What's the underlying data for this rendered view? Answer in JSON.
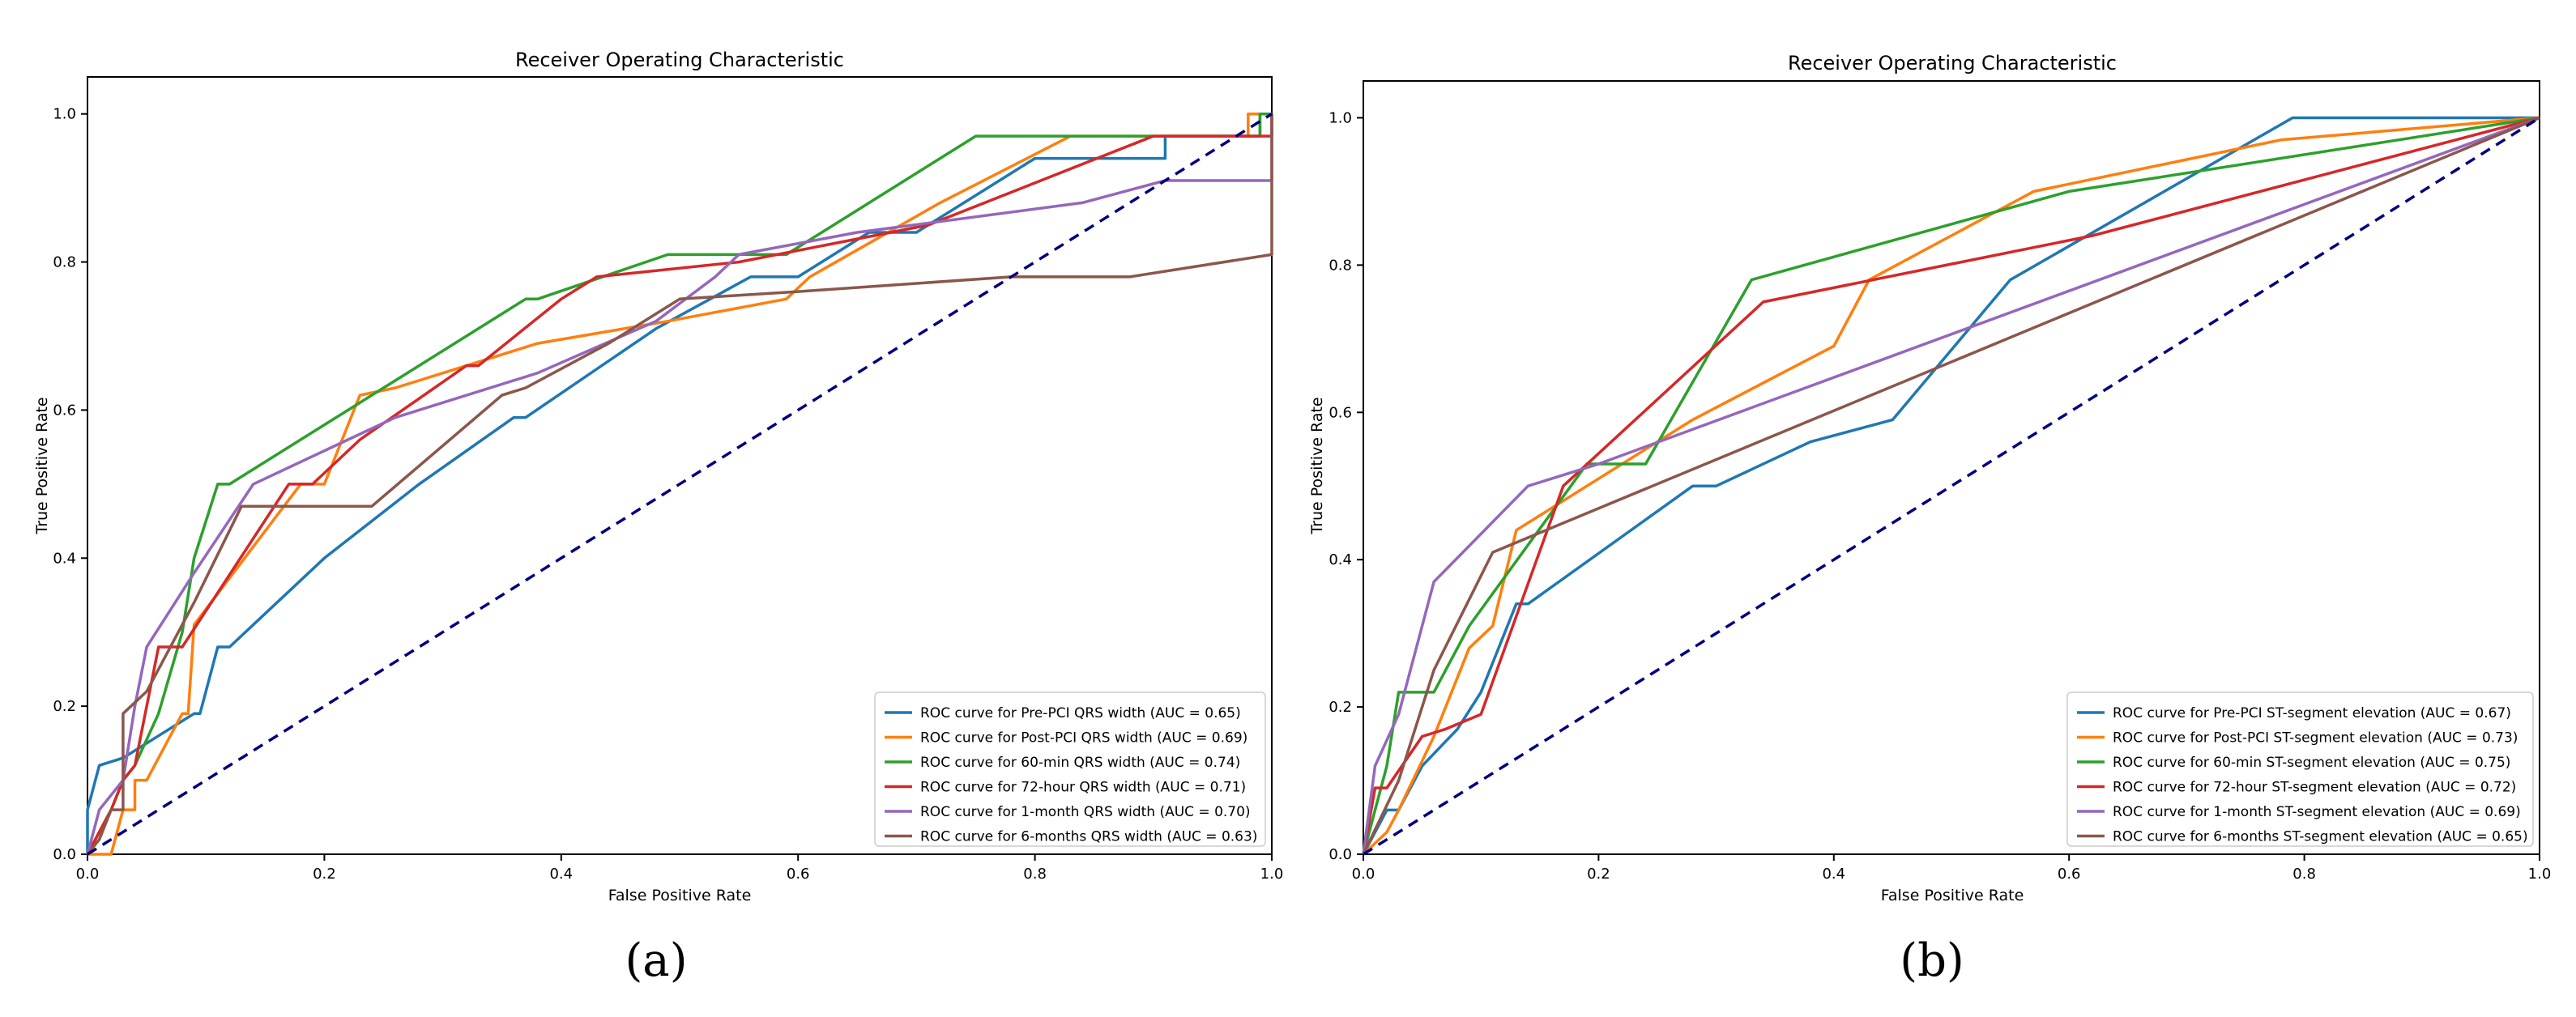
{
  "colors": {
    "pre_pci": "#1f77b4",
    "post_pci": "#ff7f0e",
    "min60": "#2ca02c",
    "hour72": "#d62728",
    "month1": "#9467bd",
    "months6": "#8c564b",
    "diagonal": "#000080"
  },
  "chart_data": [
    {
      "type": "line",
      "panel_label": "(a)",
      "title": "Receiver Operating Characteristic",
      "xlabel": "False Positive Rate",
      "ylabel": "True Positive Rate",
      "xlim": [
        0.0,
        1.0
      ],
      "ylim": [
        0.0,
        1.05
      ],
      "xticks": [
        "0.0",
        "0.2",
        "0.4",
        "0.6",
        "0.8",
        "1.0"
      ],
      "yticks": [
        "0.0",
        "0.2",
        "0.4",
        "0.6",
        "0.8",
        "1.0"
      ],
      "legend_position": "lower-right",
      "diagonal": [
        [
          0,
          0
        ],
        [
          1,
          1
        ]
      ],
      "series": [
        {
          "name": "ROC curve for Pre-PCI QRS width (AUC = 0.65)",
          "color_key": "pre_pci",
          "points": [
            [
              0,
              0
            ],
            [
              0,
              0.06
            ],
            [
              0.01,
              0.12
            ],
            [
              0.03,
              0.13
            ],
            [
              0.06,
              0.16
            ],
            [
              0.09,
              0.19
            ],
            [
              0.095,
              0.19
            ],
            [
              0.11,
              0.28
            ],
            [
              0.12,
              0.28
            ],
            [
              0.2,
              0.4
            ],
            [
              0.28,
              0.5
            ],
            [
              0.36,
              0.59
            ],
            [
              0.37,
              0.59
            ],
            [
              0.48,
              0.71
            ],
            [
              0.56,
              0.78
            ],
            [
              0.6,
              0.78
            ],
            [
              0.66,
              0.84
            ],
            [
              0.7,
              0.84
            ],
            [
              0.8,
              0.94
            ],
            [
              0.91,
              0.94
            ],
            [
              0.91,
              0.97
            ],
            [
              0.99,
              0.97
            ],
            [
              0.99,
              1.0
            ],
            [
              1,
              1
            ]
          ]
        },
        {
          "name": "ROC curve for Post-PCI QRS width (AUC = 0.69)",
          "color_key": "post_pci",
          "points": [
            [
              0,
              0
            ],
            [
              0.02,
              0
            ],
            [
              0.03,
              0.06
            ],
            [
              0.04,
              0.06
            ],
            [
              0.04,
              0.1
            ],
            [
              0.05,
              0.1
            ],
            [
              0.07,
              0.16
            ],
            [
              0.08,
              0.19
            ],
            [
              0.085,
              0.19
            ],
            [
              0.09,
              0.31
            ],
            [
              0.18,
              0.5
            ],
            [
              0.2,
              0.5
            ],
            [
              0.23,
              0.62
            ],
            [
              0.26,
              0.63
            ],
            [
              0.38,
              0.69
            ],
            [
              0.49,
              0.72
            ],
            [
              0.59,
              0.75
            ],
            [
              0.61,
              0.78
            ],
            [
              0.72,
              0.88
            ],
            [
              0.83,
              0.97
            ],
            [
              0.98,
              0.97
            ],
            [
              0.98,
              1.0
            ],
            [
              1,
              1
            ]
          ]
        },
        {
          "name": "ROC curve for 60-min QRS width (AUC = 0.74)",
          "color_key": "min60",
          "points": [
            [
              0,
              0
            ],
            [
              0.02,
              0.06
            ],
            [
              0.03,
              0.1
            ],
            [
              0.04,
              0.12
            ],
            [
              0.06,
              0.19
            ],
            [
              0.08,
              0.3
            ],
            [
              0.09,
              0.4
            ],
            [
              0.11,
              0.5
            ],
            [
              0.12,
              0.5
            ],
            [
              0.37,
              0.75
            ],
            [
              0.38,
              0.75
            ],
            [
              0.49,
              0.81
            ],
            [
              0.59,
              0.81
            ],
            [
              0.65,
              0.87
            ],
            [
              0.75,
              0.97
            ],
            [
              0.91,
              0.97
            ],
            [
              0.99,
              0.97
            ],
            [
              0.99,
              1.0
            ],
            [
              1,
              1
            ]
          ]
        },
        {
          "name": "ROC curve for 72-hour QRS width (AUC = 0.71)",
          "color_key": "hour72",
          "points": [
            [
              0,
              0
            ],
            [
              0.02,
              0.06
            ],
            [
              0.03,
              0.1
            ],
            [
              0.04,
              0.12
            ],
            [
              0.05,
              0.2
            ],
            [
              0.06,
              0.28
            ],
            [
              0.08,
              0.28
            ],
            [
              0.17,
              0.5
            ],
            [
              0.19,
              0.5
            ],
            [
              0.23,
              0.56
            ],
            [
              0.32,
              0.66
            ],
            [
              0.33,
              0.66
            ],
            [
              0.4,
              0.75
            ],
            [
              0.43,
              0.78
            ],
            [
              0.55,
              0.8
            ],
            [
              0.71,
              0.85
            ],
            [
              0.9,
              0.97
            ],
            [
              1,
              0.97
            ],
            [
              1,
              1
            ]
          ]
        },
        {
          "name": "ROC curve for 1-month QRS width (AUC = 0.70)",
          "color_key": "month1",
          "points": [
            [
              0,
              0
            ],
            [
              0.01,
              0.06
            ],
            [
              0.03,
              0.1
            ],
            [
              0.04,
              0.2
            ],
            [
              0.05,
              0.28
            ],
            [
              0.09,
              0.38
            ],
            [
              0.14,
              0.5
            ],
            [
              0.22,
              0.56
            ],
            [
              0.26,
              0.59
            ],
            [
              0.38,
              0.65
            ],
            [
              0.48,
              0.72
            ],
            [
              0.53,
              0.78
            ],
            [
              0.55,
              0.81
            ],
            [
              0.65,
              0.84
            ],
            [
              0.84,
              0.88
            ],
            [
              0.91,
              0.91
            ],
            [
              1,
              0.91
            ],
            [
              1,
              1
            ]
          ]
        },
        {
          "name": "ROC curve for 6-months QRS width (AUC = 0.63)",
          "color_key": "months6",
          "points": [
            [
              0,
              0
            ],
            [
              0.01,
              0.02
            ],
            [
              0.02,
              0.06
            ],
            [
              0.03,
              0.06
            ],
            [
              0.03,
              0.19
            ],
            [
              0.05,
              0.22
            ],
            [
              0.09,
              0.34
            ],
            [
              0.13,
              0.47
            ],
            [
              0.24,
              0.47
            ],
            [
              0.35,
              0.62
            ],
            [
              0.37,
              0.63
            ],
            [
              0.44,
              0.69
            ],
            [
              0.5,
              0.75
            ],
            [
              0.6,
              0.76
            ],
            [
              0.78,
              0.78
            ],
            [
              0.88,
              0.78
            ],
            [
              1,
              0.81
            ],
            [
              1,
              1
            ]
          ]
        }
      ]
    },
    {
      "type": "line",
      "panel_label": "(b)",
      "title": "Receiver Operating Characteristic",
      "xlabel": "False Positive Rate",
      "ylabel": "True Positive Rate",
      "xlim": [
        0.0,
        1.0
      ],
      "ylim": [
        0.0,
        1.05
      ],
      "xticks": [
        "0.0",
        "0.2",
        "0.4",
        "0.6",
        "0.8",
        "1.0"
      ],
      "yticks": [
        "0.0",
        "0.2",
        "0.4",
        "0.6",
        "0.8",
        "1.0"
      ],
      "legend_position": "lower-right",
      "diagonal": [
        [
          0,
          0
        ],
        [
          1,
          1
        ]
      ],
      "series": [
        {
          "name": "ROC curve for Pre-PCI ST-segment elevation (AUC = 0.67)",
          "color_key": "pre_pci",
          "points": [
            [
              0,
              0
            ],
            [
              0.02,
              0.06
            ],
            [
              0.03,
              0.06
            ],
            [
              0.05,
              0.12
            ],
            [
              0.08,
              0.17
            ],
            [
              0.1,
              0.22
            ],
            [
              0.13,
              0.34
            ],
            [
              0.14,
              0.34
            ],
            [
              0.28,
              0.5
            ],
            [
              0.3,
              0.5
            ],
            [
              0.38,
              0.56
            ],
            [
              0.45,
              0.59
            ],
            [
              0.55,
              0.78
            ],
            [
              0.79,
              1.0
            ],
            [
              1,
              1
            ]
          ]
        },
        {
          "name": "ROC curve for Post-PCI ST-segment elevation (AUC = 0.73)",
          "color_key": "post_pci",
          "points": [
            [
              0,
              0
            ],
            [
              0.02,
              0.03
            ],
            [
              0.03,
              0.06
            ],
            [
              0.06,
              0.16
            ],
            [
              0.09,
              0.28
            ],
            [
              0.11,
              0.31
            ],
            [
              0.13,
              0.44
            ],
            [
              0.28,
              0.59
            ],
            [
              0.4,
              0.69
            ],
            [
              0.43,
              0.78
            ],
            [
              0.57,
              0.9
            ],
            [
              0.78,
              0.97
            ],
            [
              1,
              1
            ]
          ]
        },
        {
          "name": "ROC curve for 60-min ST-segment elevation (AUC = 0.75)",
          "color_key": "min60",
          "points": [
            [
              0,
              0
            ],
            [
              0.01,
              0.06
            ],
            [
              0.02,
              0.12
            ],
            [
              0.03,
              0.22
            ],
            [
              0.06,
              0.22
            ],
            [
              0.09,
              0.31
            ],
            [
              0.19,
              0.53
            ],
            [
              0.24,
              0.53
            ],
            [
              0.33,
              0.78
            ],
            [
              0.6,
              0.9
            ],
            [
              1,
              1
            ]
          ]
        },
        {
          "name": "ROC curve for 72-hour ST-segment elevation (AUC = 0.72)",
          "color_key": "hour72",
          "points": [
            [
              0,
              0
            ],
            [
              0.01,
              0.09
            ],
            [
              0.02,
              0.09
            ],
            [
              0.05,
              0.16
            ],
            [
              0.07,
              0.17
            ],
            [
              0.1,
              0.19
            ],
            [
              0.17,
              0.5
            ],
            [
              0.34,
              0.75
            ],
            [
              0.62,
              0.84
            ],
            [
              1,
              1
            ]
          ]
        },
        {
          "name": "ROC curve for 1-month ST-segment elevation (AUC = 0.69)",
          "color_key": "month1",
          "points": [
            [
              0,
              0
            ],
            [
              0.01,
              0.12
            ],
            [
              0.03,
              0.19
            ],
            [
              0.06,
              0.37
            ],
            [
              0.14,
              0.5
            ],
            [
              0.2,
              0.53
            ],
            [
              1,
              1
            ]
          ]
        },
        {
          "name": "ROC curve for 6-months ST-segment elevation (AUC = 0.65)",
          "color_key": "months6",
          "points": [
            [
              0,
              0
            ],
            [
              0.03,
              0.1
            ],
            [
              0.06,
              0.25
            ],
            [
              0.11,
              0.41
            ],
            [
              1,
              1
            ]
          ]
        }
      ]
    }
  ]
}
